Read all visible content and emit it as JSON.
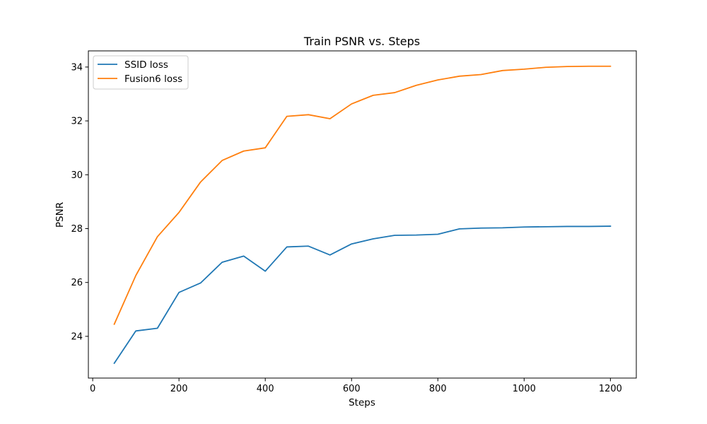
{
  "chart_data": {
    "type": "line",
    "title": "Train PSNR vs. Steps",
    "xlabel": "Steps",
    "ylabel": "PSNR",
    "xlim": [
      -10,
      1260
    ],
    "ylim": [
      22.45,
      34.6
    ],
    "xticks": [
      0,
      200,
      400,
      600,
      800,
      1000,
      1200
    ],
    "yticks": [
      24,
      26,
      28,
      30,
      32,
      34
    ],
    "grid": false,
    "legend_position": "upper-left",
    "x": [
      50,
      100,
      150,
      200,
      250,
      300,
      350,
      400,
      450,
      500,
      550,
      600,
      650,
      700,
      750,
      800,
      850,
      900,
      950,
      1000,
      1050,
      1100,
      1150,
      1200
    ],
    "series": [
      {
        "name": "SSID loss",
        "color": "#1f77b4",
        "values": [
          23.0,
          24.2,
          24.3,
          25.63,
          25.98,
          26.75,
          26.98,
          26.42,
          27.32,
          27.35,
          27.02,
          27.43,
          27.62,
          27.75,
          27.76,
          27.79,
          27.99,
          28.02,
          28.03,
          28.06,
          28.07,
          28.08,
          28.08,
          28.09
        ]
      },
      {
        "name": "Fusion6 loss",
        "color": "#ff7f0e",
        "values": [
          24.45,
          26.26,
          27.7,
          28.6,
          29.73,
          30.53,
          30.88,
          31.0,
          32.17,
          32.23,
          32.08,
          32.63,
          32.95,
          33.05,
          33.32,
          33.52,
          33.66,
          33.72,
          33.87,
          33.92,
          33.99,
          34.02,
          34.03,
          34.03
        ]
      }
    ]
  }
}
